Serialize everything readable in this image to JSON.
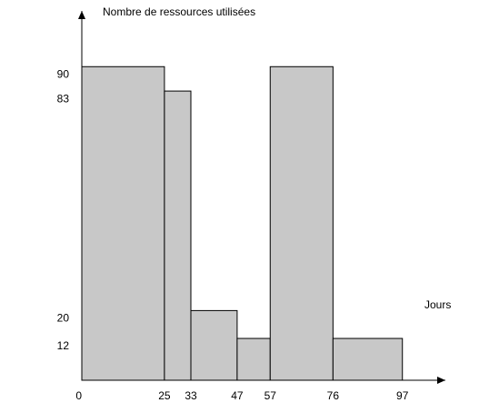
{
  "chart_data": {
    "type": "histogram",
    "y_label": "Nombre de ressources utilisées",
    "x_label": "Jours",
    "bins": [
      0,
      25,
      33,
      47,
      57,
      76,
      97
    ],
    "values": [
      90,
      83,
      20,
      12,
      90,
      12
    ],
    "color": "#c8c8c8",
    "xlim": [
      0,
      110
    ],
    "ylim": [
      0,
      106
    ],
    "xticks": [
      0,
      25,
      33,
      47,
      57,
      76,
      97
    ],
    "yticks": [
      90,
      83,
      20,
      12
    ],
    "grid": false
  }
}
